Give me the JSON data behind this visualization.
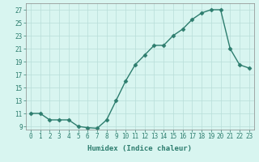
{
  "x": [
    0,
    1,
    2,
    3,
    4,
    5,
    6,
    7,
    8,
    9,
    10,
    11,
    12,
    13,
    14,
    15,
    16,
    17,
    18,
    19,
    20,
    21,
    22,
    23
  ],
  "y": [
    11,
    11,
    10,
    10,
    10,
    9,
    8.8,
    8.7,
    10,
    13,
    16,
    18.5,
    20,
    21.5,
    21.5,
    23,
    24,
    25.5,
    26.5,
    27,
    27,
    21,
    18.5,
    18
  ],
  "line_color": "#2d7d6e",
  "marker": "D",
  "marker_size": 2.5,
  "bg_color": "#d8f5f0",
  "grid_color": "#b8ddd8",
  "xlabel": "Humidex (Indice chaleur)",
  "ylim": [
    8.5,
    28
  ],
  "xlim": [
    -0.5,
    23.5
  ],
  "yticks": [
    9,
    11,
    13,
    15,
    17,
    19,
    21,
    23,
    25,
    27
  ],
  "xticks": [
    0,
    1,
    2,
    3,
    4,
    5,
    6,
    7,
    8,
    9,
    10,
    11,
    12,
    13,
    14,
    15,
    16,
    17,
    18,
    19,
    20,
    21,
    22,
    23
  ],
  "xlabel_fontsize": 6.5,
  "tick_fontsize": 5.5,
  "line_width": 1.0,
  "spine_color": "#888888"
}
